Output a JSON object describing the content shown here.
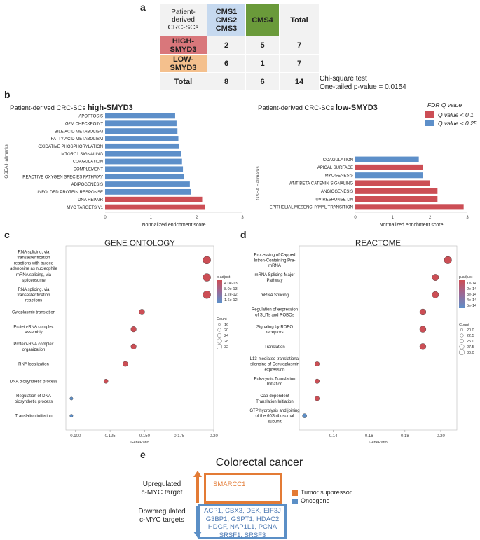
{
  "panel_labels": {
    "a": "a",
    "b": "b",
    "c": "c",
    "d": "d",
    "e": "e"
  },
  "table": {
    "corner": "Patient-derived CRC-SCs",
    "col_cms123": "CMS1 CMS2 CMS3",
    "col_cms4": "CMS4",
    "col_total": "Total",
    "rows": [
      {
        "label": "HIGH-SMYD3",
        "cms123": "2",
        "cms4": "5",
        "total": "7"
      },
      {
        "label": "LOW-SMYD3",
        "cms123": "6",
        "cms4": "1",
        "total": "7"
      },
      {
        "label": "Total",
        "cms123": "8",
        "cms4": "6",
        "total": "14"
      }
    ],
    "chi_line1": "Chi-square test",
    "chi_line2": "One-tailed p-value = 0.0154"
  },
  "colors": {
    "red": "#cc4e55",
    "blue": "#5d8fc9",
    "orange": "#e37b35",
    "e_blue": "#5b8fc6"
  },
  "chart_data": [
    {
      "type": "bar",
      "title_prefix": "Patient-derived CRC-SCs",
      "title_bold": "high-SMYD3",
      "ylabel": "GSEA Hallmarks",
      "xlabel": "Normalized enrichment score",
      "xlim": [
        0,
        3
      ],
      "ticks": [
        "0",
        "1",
        "2",
        "3"
      ],
      "categories": [
        "APOPTOSIS",
        "G2M CHECKPOINT",
        "BILE ACID METABOLISM",
        "FATTY ACID METABOLISM",
        "OXIDATIVE PHOSPHORYLATION",
        "MTORC1 SIGNALING",
        "COAGULATION",
        "COMPLEMENT",
        "REACTIVE OXYGEN SPECIES PATHWAY",
        "ADIPOGENESIS",
        "UNFOLDED PROTEIN RESPONSE",
        "DNA REPAIR",
        "MYC TARGETS V1"
      ],
      "values": [
        1.53,
        1.56,
        1.58,
        1.6,
        1.62,
        1.66,
        1.68,
        1.7,
        1.72,
        1.85,
        1.87,
        2.12,
        2.18
      ],
      "q_class": [
        "q025",
        "q025",
        "q025",
        "q025",
        "q025",
        "q025",
        "q025",
        "q025",
        "q025",
        "q025",
        "q025",
        "q01",
        "q01"
      ]
    },
    {
      "type": "bar",
      "title_prefix": "Patient-derived CRC-SCs",
      "title_bold": "low-SMYD3",
      "ylabel": "GSEA Hallmarks",
      "xlabel": "Normalized enrichment score",
      "xlim": [
        0,
        3
      ],
      "ticks": [
        "0",
        "1",
        "2",
        "3"
      ],
      "categories": [
        "COAGULATION",
        "APICAL SURFACE",
        "MYOGENESIS",
        "WNT BETA CATENIN SIGNALING",
        "ANGIOGENESIS",
        "UV RESPONSE DN",
        "EPITHELIAL MESENCHYMAL TRANSITION"
      ],
      "values": [
        1.7,
        1.8,
        1.8,
        2.0,
        2.2,
        2.2,
        2.9
      ],
      "q_class": [
        "q025",
        "q01",
        "q025",
        "q01",
        "q01",
        "q01",
        "q01"
      ],
      "legend_title": "FDR Q value",
      "legend_items": [
        {
          "key": "q01",
          "label": "Q value < 0.1"
        },
        {
          "key": "q025",
          "label": "Q value < 0.25"
        }
      ]
    },
    {
      "type": "scatter",
      "title": "GENE ONTOLOGY",
      "xlabel": "GeneRatio",
      "xlim": [
        0.093,
        0.2
      ],
      "ticks": [
        0.1,
        0.125,
        0.15,
        0.175,
        0.2
      ],
      "tick_labels": [
        "0.100",
        "0.125",
        "0.150",
        "0.175",
        "0.20"
      ],
      "terms": [
        [
          "RNA splicing, via",
          "transesterification",
          "reactions with bulged",
          "adenosine as nucleophile"
        ],
        [
          "mRNA splicing, via",
          "spliceosome"
        ],
        [
          "RNA splicing, via",
          "transesterification",
          "reactions"
        ],
        [
          "Cytoplasmic translation"
        ],
        [
          "Protein-RNA complex",
          "assembly"
        ],
        [
          "Protein-RNA complex",
          "organization"
        ],
        [
          "RNA  localization"
        ],
        [
          "DNA biosynthetic process"
        ],
        [
          "Regulation of DNA",
          "biosynthetic process"
        ],
        [
          "Translation initiation"
        ]
      ],
      "x": [
        0.195,
        0.195,
        0.195,
        0.148,
        0.142,
        0.142,
        0.136,
        0.122,
        0.097,
        0.097
      ],
      "count": [
        32,
        32,
        32,
        25,
        24,
        24,
        23,
        20,
        16,
        16
      ],
      "padjust_class": [
        "red",
        "red",
        "red",
        "red",
        "red",
        "red",
        "red",
        "red",
        "blue",
        "blue"
      ],
      "legend_padjust_title": "p.adjust",
      "legend_padjust_labels": [
        "4.0e-13",
        "8.0e-13",
        "1.2e-12",
        "1.6e-12"
      ],
      "legend_count_title": "Count",
      "legend_count_labels": [
        "16",
        "20",
        "24",
        "28",
        "32"
      ]
    },
    {
      "type": "scatter",
      "title": "REACTOME",
      "xlabel": "GeneRatio",
      "xlim": [
        0.121,
        0.209
      ],
      "ticks": [
        0.14,
        0.16,
        0.18,
        0.2
      ],
      "tick_labels": [
        "0.14",
        "0.16",
        "0.18",
        "0.20"
      ],
      "terms": [
        [
          "Processing of Capped",
          "Intron-Containing Pre-",
          "mRNA"
        ],
        [
          "mRNA Splicing-Major",
          "Pathway"
        ],
        [
          "mRNA Splicing"
        ],
        [
          "Regulation of expression",
          "of SLITs and ROBOs"
        ],
        [
          "Signaling by ROBO",
          "receptors"
        ],
        [
          "Translation"
        ],
        [
          "L13-mediated translational",
          "silencing of Ceruloplasmin",
          "expression"
        ],
        [
          "Eukaryotic Translation",
          "Initiation"
        ],
        [
          "Cap-dependent",
          "Translation Initiation"
        ],
        [
          "GTP hydrolysis and joining",
          "of the 60S ribosomal",
          "subunit"
        ]
      ],
      "x": [
        0.204,
        0.197,
        0.197,
        0.19,
        0.19,
        0.19,
        0.131,
        0.131,
        0.131,
        0.124
      ],
      "count": [
        31,
        28,
        28,
        27,
        27,
        27,
        21,
        21,
        21,
        20
      ],
      "padjust_class": [
        "red",
        "red",
        "red",
        "red",
        "red",
        "red",
        "red",
        "red",
        "red",
        "blue"
      ],
      "legend_padjust_title": "p.adjust",
      "legend_padjust_labels": [
        "1e-14",
        "2e-14",
        "3e-14",
        "4e-14",
        "5e-14"
      ],
      "legend_count_title": "Count",
      "legend_count_labels": [
        "20.0",
        "22.5",
        "25.0",
        "27.5",
        "30.0"
      ]
    }
  ],
  "panel_e": {
    "title": "Colorectal cancer",
    "up_label_1": "Upregulated",
    "up_label_2": "c-MYC target",
    "down_label_1": "Downregulated",
    "down_label_2": "c-MYC targets",
    "up_genes": "SMARCC1",
    "down_lines": [
      "ACP1, CBX3, DEK, EIF3J",
      "G3BP1, GSPT1, HDAC2",
      "HDGF, NAP1L1, PCNA",
      "SRSF1, SRSF3"
    ],
    "legend_tumor": "Tumor suppressor",
    "legend_onco": "Oncogene"
  }
}
